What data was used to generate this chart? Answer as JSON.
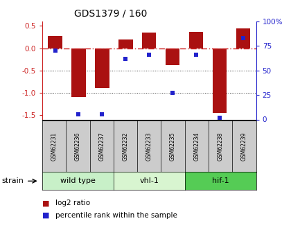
{
  "title": "GDS1379 / 160",
  "samples": [
    "GSM62231",
    "GSM62236",
    "GSM62237",
    "GSM62232",
    "GSM62233",
    "GSM62235",
    "GSM62234",
    "GSM62238",
    "GSM62239"
  ],
  "log2_ratio": [
    0.28,
    -1.1,
    -0.9,
    0.2,
    0.35,
    -0.38,
    0.37,
    -1.45,
    0.45
  ],
  "percentile_rank": [
    70,
    5,
    5,
    62,
    66,
    27,
    66,
    2,
    83
  ],
  "groups": [
    {
      "label": "wild type",
      "samples": [
        0,
        1,
        2
      ],
      "color": "#c8f0c8"
    },
    {
      "label": "vhl-1",
      "samples": [
        3,
        4,
        5
      ],
      "color": "#d8f5d0"
    },
    {
      "label": "hif-1",
      "samples": [
        6,
        7,
        8
      ],
      "color": "#55cc55"
    }
  ],
  "ylim": [
    -1.6,
    0.6
  ],
  "y2lim": [
    0,
    100
  ],
  "bar_color": "#aa1111",
  "dot_color": "#2222cc",
  "bar_width": 0.6,
  "zero_line_color": "#cc2222",
  "grid_color": "#333333",
  "tick_label_color_left": "#cc2222",
  "tick_label_color_right": "#2222cc",
  "legend_log2": "log2 ratio",
  "legend_pct": "percentile rank within the sample",
  "sample_box_color": "#cccccc",
  "yticks_left": [
    0.5,
    0.0,
    -0.5,
    -1.0,
    -1.5
  ],
  "yticks_right": [
    0,
    25,
    50,
    75,
    100
  ],
  "ytick_labels_right": [
    "0",
    "25",
    "50",
    "75",
    "100%"
  ]
}
